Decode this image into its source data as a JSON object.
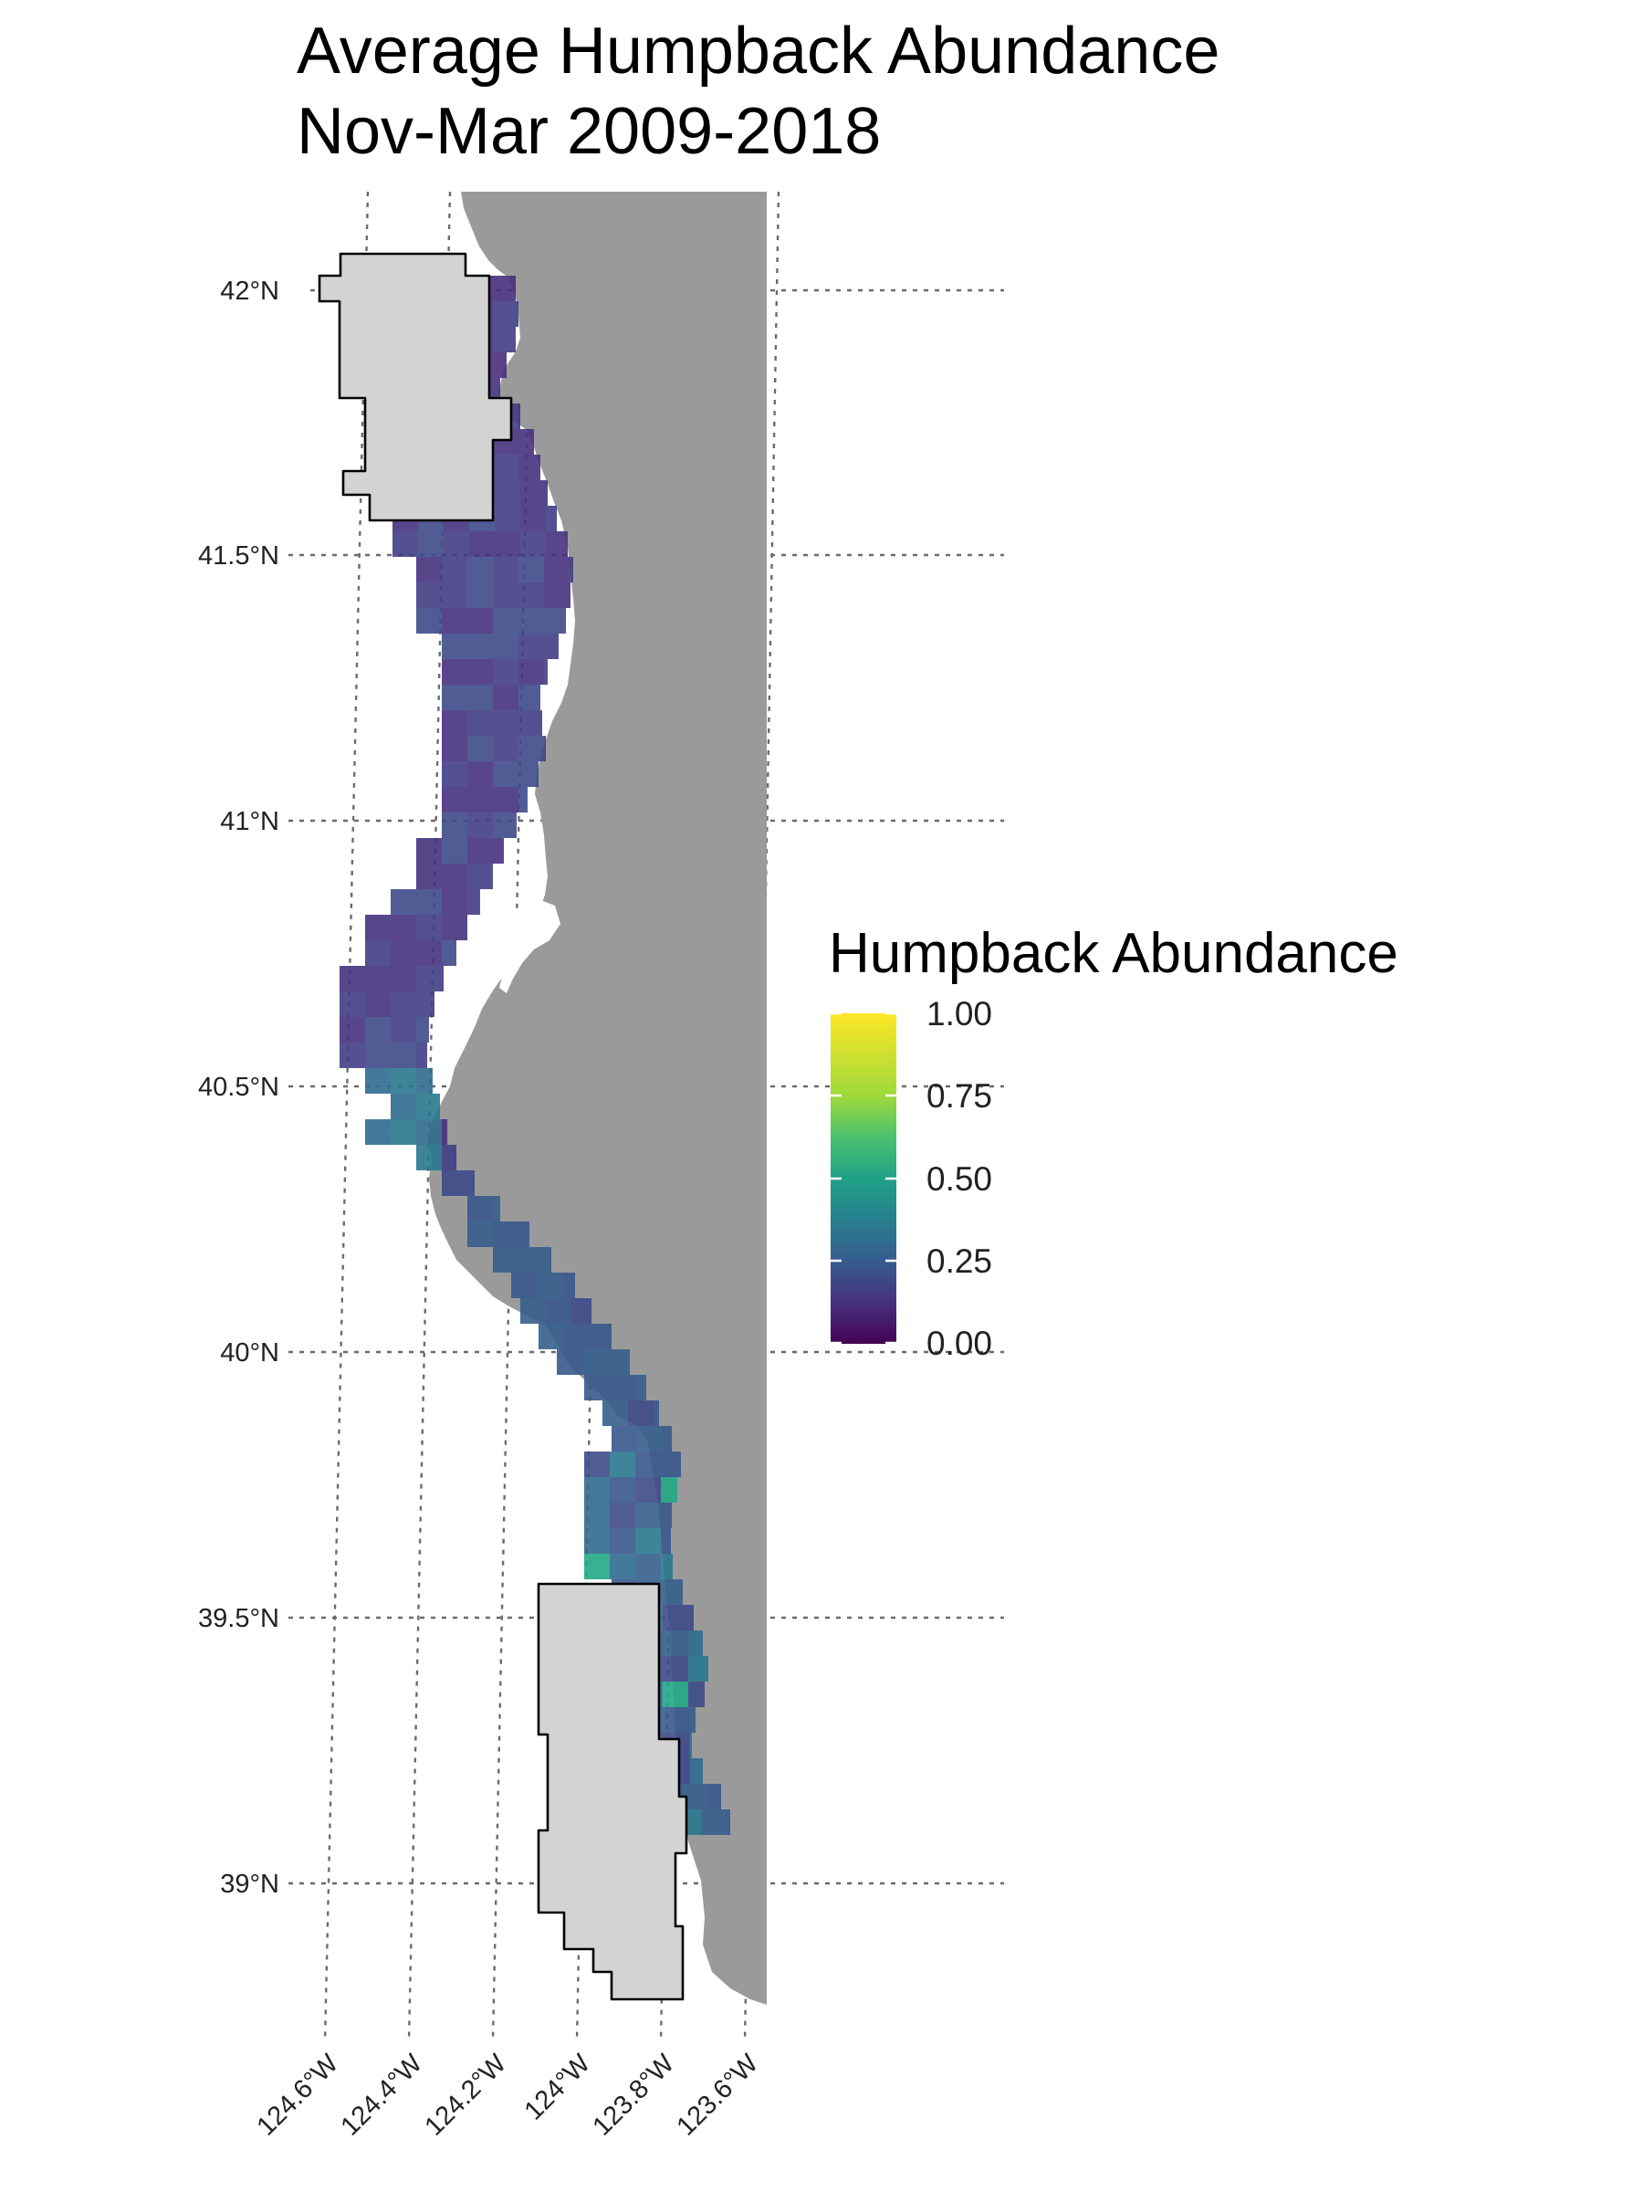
{
  "title": {
    "line1": "Average Humpback Abundance",
    "line2": "Nov-Mar 2009-2018"
  },
  "map": {
    "lat_labels": [
      "42°N",
      "41.5°N",
      "41°N",
      "40.5°N",
      "40°N",
      "39.5°N",
      "39°N"
    ],
    "lon_labels": [
      "124.6°W",
      "124.4°W",
      "124.2°W",
      "124°W",
      "123.8°W",
      "123.6°W"
    ],
    "land_color": "#9a9a9a",
    "closure_area_fill": "#d3d3d3",
    "closure_area_outline": "#000000"
  },
  "legend": {
    "title": "Humpback Abundance",
    "ticks": [
      "1.00",
      "0.75",
      "0.50",
      "0.25",
      "0.00"
    ],
    "colormap": [
      "#440154",
      "#3b528b",
      "#21918c",
      "#5ec962",
      "#fde725"
    ],
    "range": [
      0,
      1
    ]
  }
}
